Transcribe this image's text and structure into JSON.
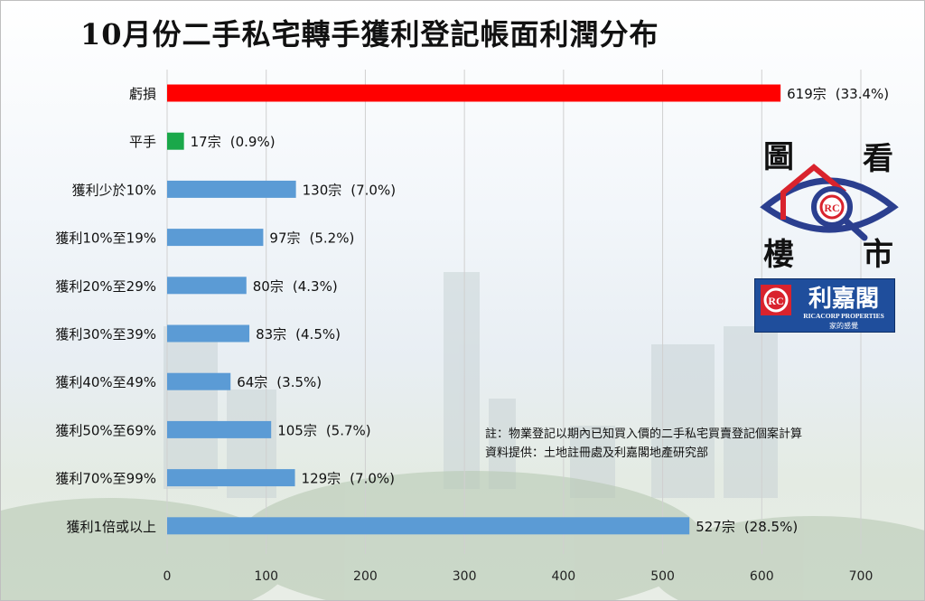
{
  "title": "10月份二手私宅轉手獲利登記帳面利潤分布",
  "note": {
    "line1": "註：物業登記以期內已知買入價的二手私宅買賣登記個案計算",
    "line2": "資料提供：土地註冊處及利嘉閣地產研究部"
  },
  "logo": {
    "eye_chars": [
      "圖",
      "看",
      "樓",
      "市"
    ],
    "brand_cn": "利嘉閣",
    "brand_en": "RICACORP PROPERTIES",
    "slogan": "家的感覺"
  },
  "colors": {
    "loss": "#ff0000",
    "breakeven": "#1aa84a",
    "profit": "#5b9bd5",
    "brand_blue": "#1f4e9c",
    "logo_red": "#d9232d"
  },
  "chart_data": {
    "type": "bar",
    "orientation": "horizontal",
    "categories": [
      "虧損",
      "平手",
      "獲利少於10%",
      "獲利10%至19%",
      "獲利20%至29%",
      "獲利30%至39%",
      "獲利40%至49%",
      "獲利50%至69%",
      "獲利70%至99%",
      "獲利1倍或以上"
    ],
    "values": [
      619,
      17,
      130,
      97,
      80,
      83,
      64,
      105,
      129,
      527
    ],
    "value_labels": [
      "619宗",
      "17宗",
      "130宗",
      "97宗",
      "80宗",
      "83宗",
      "64宗",
      "105宗",
      "129宗",
      "527宗"
    ],
    "percent_labels": [
      "(33.4%)",
      "(0.9%)",
      "(7.0%)",
      "(5.2%)",
      "(4.3%)",
      "(4.5%)",
      "(3.5%)",
      "(5.7%)",
      "(7.0%)",
      "(28.5%)"
    ],
    "bar_colors": [
      "#ff0000",
      "#1aa84a",
      "#5b9bd5",
      "#5b9bd5",
      "#5b9bd5",
      "#5b9bd5",
      "#5b9bd5",
      "#5b9bd5",
      "#5b9bd5",
      "#5b9bd5"
    ],
    "xlim": [
      0,
      700
    ],
    "xticks": [
      0,
      100,
      200,
      300,
      400,
      500,
      600,
      700
    ],
    "grid": "vertical",
    "legend": "none"
  }
}
